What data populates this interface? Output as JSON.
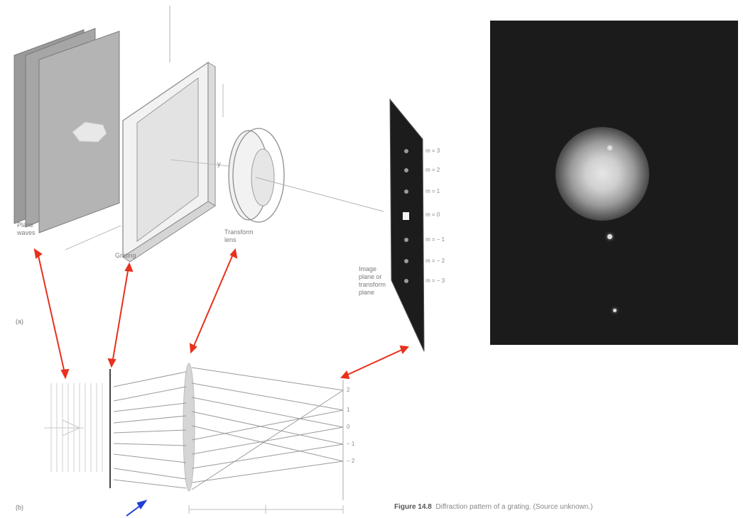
{
  "labels": {
    "plane_waves": "Plane\nwaves",
    "grating": "Grating",
    "transform_lens": "Transform\nlens",
    "image_plane": "Image\nplane or\ntransform\nplane",
    "axis_y": "y"
  },
  "orders": [
    "m = 3",
    "m = 2",
    "m = 1",
    "m = 0",
    "m = − 1",
    "m = − 2",
    "m = − 3"
  ],
  "bottom_orders": [
    "2",
    "1",
    "0",
    "− 1",
    "− 2"
  ],
  "subfigure_labels": {
    "top": "(a)",
    "bottom": "(b)"
  },
  "caption": {
    "number": "Figure 14.8",
    "text": "Diffraction pattern of a grating. (Source unknown.)"
  },
  "colors": {
    "arrow_red": "#e8301c",
    "arrow_blue": "#1d3fd6",
    "photo_bg": "#1b1b1b",
    "line_gray": "#9a9a9a"
  }
}
